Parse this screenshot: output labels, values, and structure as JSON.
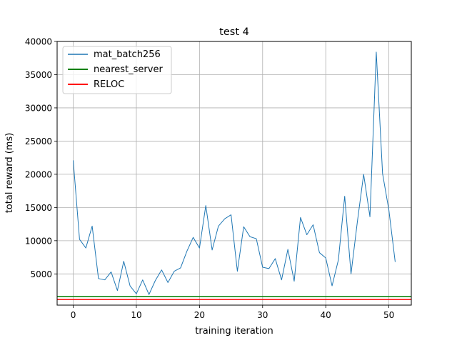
{
  "chart_data": {
    "type": "line",
    "title": "test 4",
    "xlabel": "training iteration",
    "ylabel": "total reward (ms)",
    "xlim": [
      -2.55,
      53.55
    ],
    "ylim": [
      300,
      40000
    ],
    "xticks": [
      0,
      10,
      20,
      30,
      40,
      50
    ],
    "yticks": [
      5000,
      10000,
      15000,
      20000,
      25000,
      30000,
      35000,
      40000
    ],
    "grid": true,
    "legend_position": "top-left",
    "series": [
      {
        "name": "mat_batch256",
        "kind": "line",
        "color": "#1f77b4",
        "x": [
          0,
          1,
          2,
          3,
          4,
          5,
          6,
          7,
          8,
          9,
          10,
          11,
          12,
          13,
          14,
          15,
          16,
          17,
          18,
          19,
          20,
          21,
          22,
          23,
          24,
          25,
          26,
          27,
          28,
          29,
          30,
          31,
          32,
          33,
          34,
          35,
          36,
          37,
          38,
          39,
          40,
          41,
          42,
          43,
          44,
          45,
          46,
          47,
          48,
          49,
          50,
          51
        ],
        "values": [
          22100,
          10200,
          8900,
          12200,
          4300,
          4100,
          5300,
          2500,
          6900,
          3200,
          2000,
          4100,
          1900,
          4000,
          5600,
          3700,
          5400,
          5900,
          8400,
          10500,
          8900,
          15300,
          8600,
          12200,
          13300,
          13900,
          5400,
          12100,
          10600,
          10300,
          6000,
          5800,
          7300,
          4100,
          8700,
          3900,
          13500,
          10900,
          12400,
          8200,
          7400,
          3200,
          7100,
          16700,
          5000,
          12800,
          20000,
          13600,
          38400,
          20100,
          14600,
          6800
        ]
      },
      {
        "name": "nearest_server",
        "kind": "hline",
        "color": "#008000",
        "value": 1600
      },
      {
        "name": "RELOC",
        "kind": "hline",
        "color": "#ff0000",
        "value": 1150
      }
    ]
  }
}
